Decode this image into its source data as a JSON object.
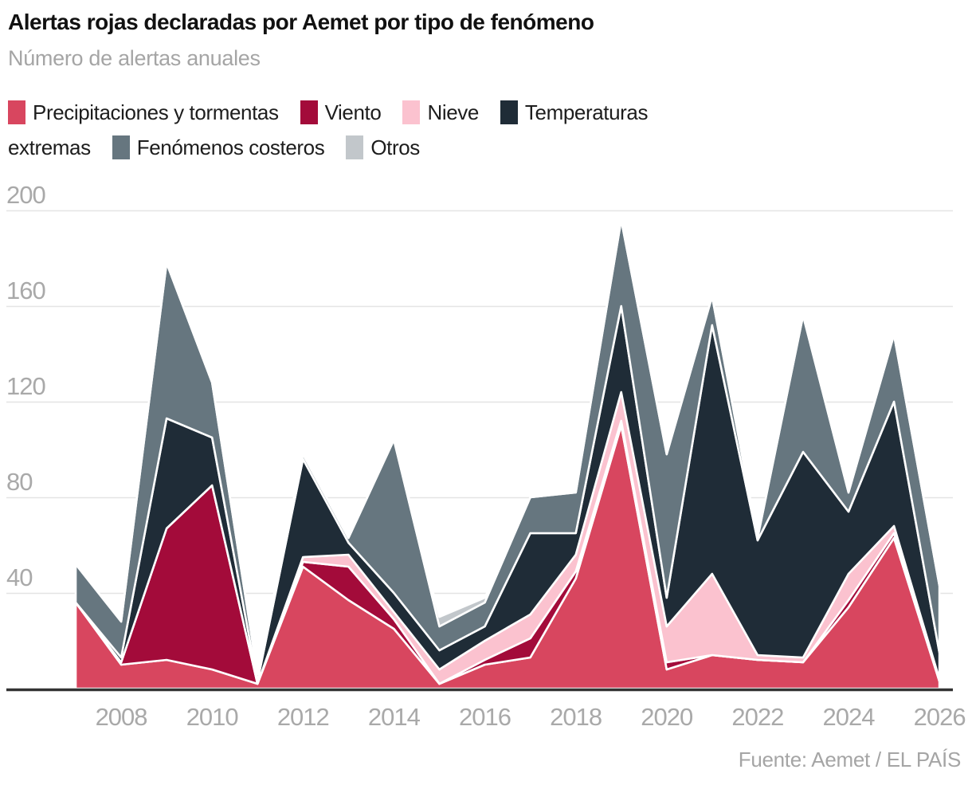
{
  "header": {
    "title": "Alertas rojas declaradas por Aemet por tipo de fenómeno",
    "subtitle": "Número de alertas anuales"
  },
  "legend": {
    "rows": [
      [
        {
          "swatch": "#d8465f",
          "label": "Precipitaciones y tormentas"
        },
        {
          "swatch": "#a30b3a",
          "label": "Viento"
        },
        {
          "swatch": "#fbc2cf",
          "label": "Nieve"
        },
        {
          "swatch": "#1f2c37",
          "label": "Temperaturas"
        }
      ],
      [
        {
          "swatch": null,
          "label": "extremas"
        },
        {
          "swatch": "#66767f",
          "label": "Fenómenos costeros"
        },
        {
          "swatch": "#c2c7cb",
          "label": "Otros"
        }
      ]
    ]
  },
  "chart_data": {
    "type": "area",
    "stacked": true,
    "title": "Alertas rojas declaradas por Aemet por tipo de fenómeno",
    "subtitle": "Número de alertas anuales",
    "x": [
      2007,
      2008,
      2009,
      2010,
      2011,
      2012,
      2013,
      2014,
      2015,
      2016,
      2017,
      2018,
      2019,
      2020,
      2021,
      2022,
      2023,
      2024,
      2025,
      2026
    ],
    "x_tick_labels": [
      "2008",
      "2010",
      "2012",
      "2014",
      "2016",
      "2018",
      "2020",
      "2022",
      "2024",
      "2026"
    ],
    "y_ticks": [
      40,
      80,
      120,
      160,
      200
    ],
    "ylim": [
      0,
      200
    ],
    "grid": true,
    "legend_position": "top",
    "series": [
      {
        "name": "Precipitaciones y tormentas",
        "color": "#d8465f",
        "values": [
          36,
          10,
          12,
          8,
          2,
          51,
          37,
          25,
          2,
          10,
          13,
          46,
          110,
          8,
          14,
          12,
          11,
          34,
          63,
          3
        ]
      },
      {
        "name": "Viento",
        "color": "#a30b3a",
        "values": [
          0,
          1,
          55,
          77,
          0,
          2,
          14,
          4,
          0,
          2,
          8,
          3,
          2,
          3,
          0,
          0,
          0,
          3,
          2,
          0
        ]
      },
      {
        "name": "Nieve",
        "color": "#fbc2cf",
        "values": [
          0,
          0,
          0,
          0,
          0,
          2,
          5,
          3,
          6,
          8,
          10,
          7,
          12,
          15,
          34,
          2,
          2,
          11,
          3,
          1
        ]
      },
      {
        "name": "Temperaturas extremas",
        "color": "#1f2c37",
        "values": [
          0,
          2,
          46,
          20,
          1,
          41,
          5,
          8,
          8,
          6,
          34,
          9,
          36,
          12,
          104,
          48,
          86,
          26,
          52,
          11
        ]
      },
      {
        "name": "Fenómenos costeros",
        "color": "#66767f",
        "values": [
          16,
          15,
          65,
          23,
          3,
          2,
          2,
          64,
          10,
          10,
          15,
          17,
          36,
          60,
          12,
          1,
          57,
          8,
          28,
          28
        ]
      },
      {
        "name": "Otros",
        "color": "#c2c7cb",
        "values": [
          0,
          0,
          0,
          0,
          0,
          0,
          0,
          0,
          4,
          2,
          0,
          0,
          0,
          0,
          0,
          0,
          0,
          0,
          0,
          0
        ]
      }
    ]
  },
  "footer": {
    "source": "Fuente: Aemet / EL PAÍS"
  },
  "colors": {
    "grid": "#e4e4e4",
    "axis_labels": "#a9a9a9",
    "baseline": "#333333",
    "separator_stroke": "#ffffff"
  }
}
